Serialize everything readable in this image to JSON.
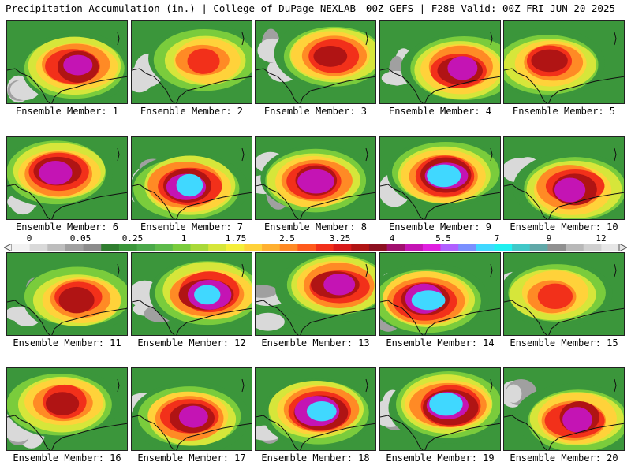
{
  "header": {
    "left": "Precipitation Accumulation (in.) | College of DuPage NEXLAB",
    "right": "00Z GEFS | F288 Valid: 00Z FRI JUN 20 2025"
  },
  "colorbar": {
    "labels": [
      "0",
      "0.05",
      "0.25",
      "1",
      "1.75",
      "2.5",
      "3.25",
      "4",
      "5.5",
      "7",
      "9",
      "12"
    ],
    "colors": [
      "#f2f2f2",
      "#d9d9d9",
      "#bdbdbd",
      "#a0a0a0",
      "#8c8c8c",
      "#2f7d2f",
      "#3b963b",
      "#4aa84a",
      "#5dba4a",
      "#7acc3c",
      "#a9d939",
      "#d6e63a",
      "#f5ef3a",
      "#ffd23a",
      "#ffb030",
      "#ff8a25",
      "#ff5a1c",
      "#f2301a",
      "#d81a1a",
      "#b01414",
      "#8c1020",
      "#a0106e",
      "#c414b4",
      "#e020e0",
      "#b060ff",
      "#7a90ff",
      "#40d8ff",
      "#20f0f0",
      "#40c8c8",
      "#60a8a8",
      "#909090",
      "#b8b8b8",
      "#d0d0d0",
      "#e6e6e6"
    ]
  },
  "members": [
    {
      "label": "Ensemble Member: 1",
      "intensity": 4
    },
    {
      "label": "Ensemble Member: 2",
      "intensity": 2
    },
    {
      "label": "Ensemble Member: 3",
      "intensity": 3
    },
    {
      "label": "Ensemble Member: 4",
      "intensity": 4
    },
    {
      "label": "Ensemble Member: 5",
      "intensity": 3
    },
    {
      "label": "Ensemble Member: 6",
      "intensity": 4
    },
    {
      "label": "Ensemble Member: 7",
      "intensity": 5
    },
    {
      "label": "Ensemble Member: 8",
      "intensity": 4
    },
    {
      "label": "Ensemble Member: 9",
      "intensity": 5
    },
    {
      "label": "Ensemble Member: 10",
      "intensity": 4
    },
    {
      "label": "Ensemble Member: 11",
      "intensity": 3
    },
    {
      "label": "Ensemble Member: 12",
      "intensity": 5
    },
    {
      "label": "Ensemble Member: 13",
      "intensity": 4
    },
    {
      "label": "Ensemble Member: 14",
      "intensity": 5
    },
    {
      "label": "Ensemble Member: 15",
      "intensity": 2
    },
    {
      "label": "Ensemble Member: 16",
      "intensity": 3
    },
    {
      "label": "Ensemble Member: 17",
      "intensity": 4
    },
    {
      "label": "Ensemble Member: 18",
      "intensity": 5
    },
    {
      "label": "Ensemble Member: 19",
      "intensity": 5
    },
    {
      "label": "Ensemble Member: 20",
      "intensity": 4
    }
  ]
}
